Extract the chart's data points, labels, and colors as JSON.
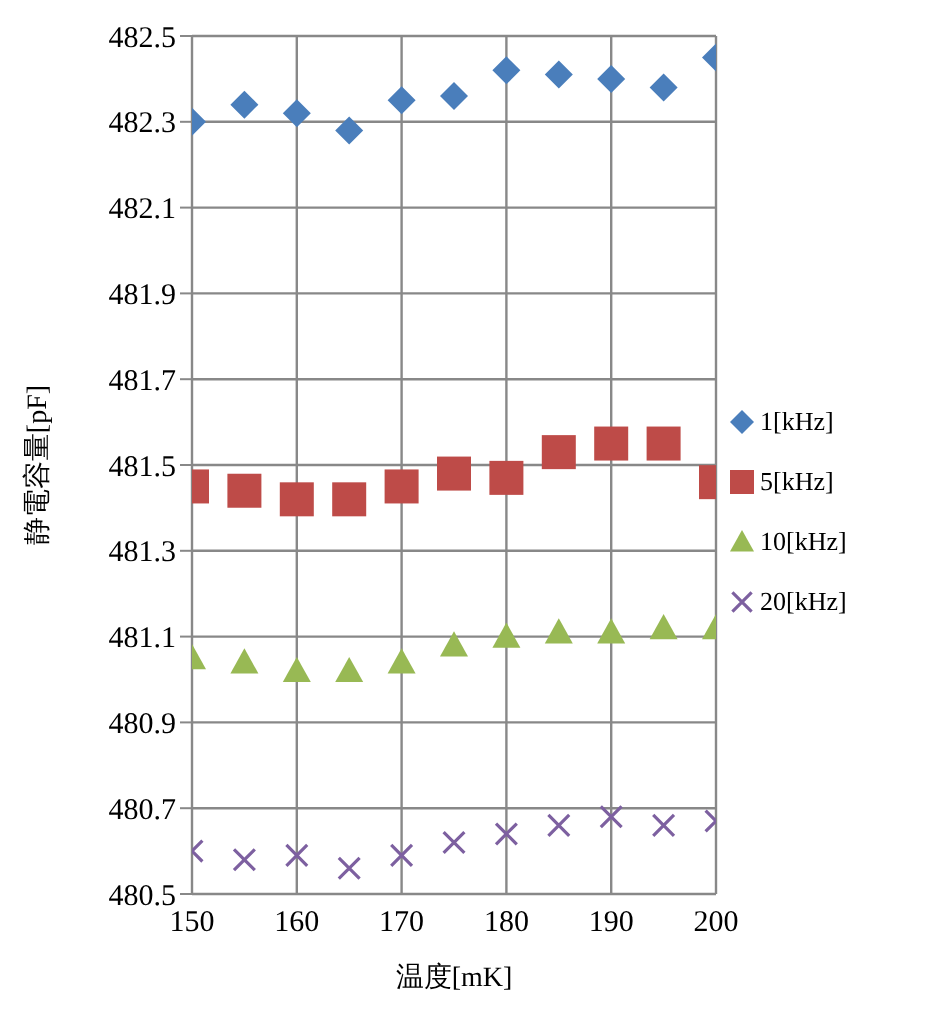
{
  "chart_data": {
    "type": "scatter",
    "xlabel": "温度[mK]",
    "ylabel": "静電容量[pF]",
    "x": [
      150,
      155,
      160,
      165,
      170,
      175,
      180,
      185,
      190,
      195,
      200
    ],
    "xlim": [
      150,
      200
    ],
    "xticks": [
      150,
      160,
      170,
      180,
      190,
      200
    ],
    "ylim": [
      480.5,
      482.5
    ],
    "yticks": [
      480.5,
      480.7,
      480.9,
      481.1,
      481.3,
      481.5,
      481.7,
      481.9,
      482.1,
      482.3,
      482.5
    ],
    "grid": true,
    "legend": "right",
    "series": [
      {
        "name": "1[kHz]",
        "color": "#4a7ebb",
        "marker": "diamond",
        "values": [
          482.3,
          482.34,
          482.32,
          482.28,
          482.35,
          482.36,
          482.42,
          482.41,
          482.4,
          482.38,
          482.45
        ]
      },
      {
        "name": "5[kHz]",
        "color": "#be4b48",
        "marker": "square",
        "values": [
          481.45,
          481.44,
          481.42,
          481.42,
          481.45,
          481.48,
          481.47,
          481.53,
          481.55,
          481.55,
          481.46
        ]
      },
      {
        "name": "10[kHz]",
        "color": "#98b954",
        "marker": "triangle",
        "values": [
          481.05,
          481.04,
          481.02,
          481.02,
          481.04,
          481.08,
          481.1,
          481.11,
          481.11,
          481.12,
          481.12
        ]
      },
      {
        "name": "20[kHz]",
        "color": "#7d60a0",
        "marker": "cross",
        "values": [
          480.6,
          480.58,
          480.59,
          480.56,
          480.59,
          480.62,
          480.64,
          480.66,
          480.68,
          480.66,
          480.67
        ]
      }
    ]
  }
}
